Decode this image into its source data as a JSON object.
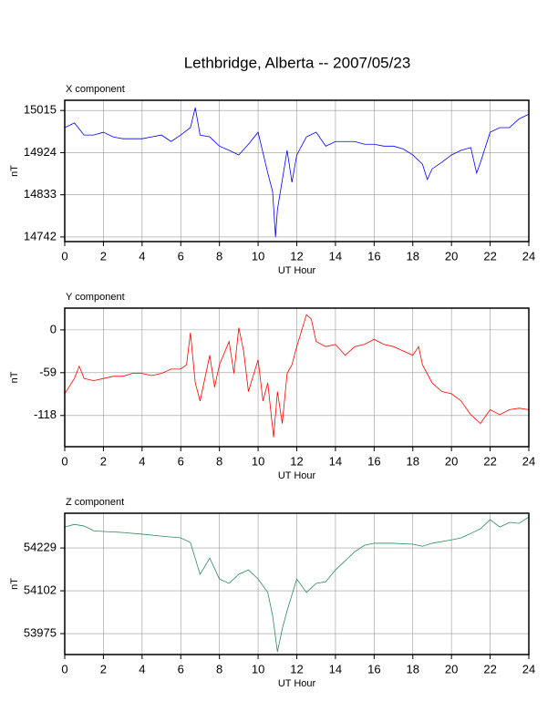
{
  "title": "Lethbridge, Alberta -- 2007/05/23",
  "chart_data": [
    {
      "type": "line",
      "title": "X component",
      "xlabel": "UT Hour",
      "ylabel": "nT",
      "xlim": [
        0,
        24
      ],
      "xticks": [
        0,
        2,
        4,
        6,
        8,
        10,
        12,
        14,
        16,
        18,
        20,
        22,
        24
      ],
      "ylim": [
        14732,
        15037
      ],
      "yticks": [
        14742,
        14833,
        14924,
        15015
      ],
      "grid": true,
      "x": [
        0,
        0.5,
        1,
        1.5,
        2,
        2.5,
        3,
        3.5,
        4,
        4.5,
        5,
        5.5,
        6,
        6.5,
        6.75,
        7,
        7.5,
        8,
        8.5,
        9,
        9.5,
        10,
        10.5,
        10.75,
        10.9,
        11,
        11.5,
        11.75,
        12,
        12.5,
        13,
        13.5,
        14,
        14.5,
        15,
        15.5,
        16,
        16.5,
        17,
        17.5,
        18,
        18.5,
        18.75,
        19,
        19.5,
        20,
        20.5,
        21,
        21.3,
        21.5,
        22,
        22.5,
        23,
        23.5,
        24
      ],
      "series": [
        {
          "name": "X component",
          "color": "#0000ff",
          "values": [
            14978,
            14988,
            14962,
            14962,
            14968,
            14958,
            14954,
            14954,
            14954,
            14958,
            14962,
            14948,
            14962,
            14978,
            15021,
            14962,
            14958,
            14938,
            14929,
            14919,
            14942,
            14968,
            14880,
            14840,
            14742,
            14801,
            14929,
            14860,
            14919,
            14958,
            14968,
            14938,
            14948,
            14948,
            14948,
            14942,
            14942,
            14938,
            14938,
            14932,
            14919,
            14899,
            14866,
            14889,
            14903,
            14919,
            14929,
            14935,
            14880,
            14903,
            14968,
            14978,
            14978,
            14997,
            15007
          ]
        }
      ]
    },
    {
      "type": "line",
      "title": "Y component",
      "xlabel": "UT Hour",
      "ylabel": "nT",
      "xlim": [
        0,
        24
      ],
      "xticks": [
        0,
        2,
        4,
        6,
        8,
        10,
        12,
        14,
        16,
        18,
        20,
        22,
        24
      ],
      "ylim": [
        -161,
        30
      ],
      "yticks": [
        -118,
        -59,
        0
      ],
      "grid": true,
      "x": [
        0,
        0.5,
        0.75,
        1,
        1.5,
        2,
        2.5,
        3,
        3.5,
        4,
        4.5,
        5,
        5.5,
        6,
        6.3,
        6.5,
        6.75,
        7,
        7.5,
        7.75,
        8,
        8.5,
        8.75,
        9,
        9.25,
        9.5,
        10,
        10.25,
        10.5,
        10.8,
        11,
        11.25,
        11.5,
        11.75,
        12,
        12.5,
        12.75,
        13,
        13.5,
        14,
        14.5,
        15,
        15.5,
        16,
        16.5,
        17,
        17.5,
        18,
        18.3,
        18.5,
        19,
        19.5,
        20,
        20.5,
        21,
        21.5,
        22,
        22.5,
        23,
        23.5,
        24
      ],
      "series": [
        {
          "name": "Y component",
          "color": "#ff0000",
          "values": [
            -88,
            -67,
            -50,
            -67,
            -70,
            -67,
            -64,
            -64,
            -60,
            -60,
            -63,
            -60,
            -54,
            -54,
            -48,
            -4,
            -73,
            -98,
            -35,
            -79,
            -48,
            -16,
            -60,
            3,
            -29,
            -85,
            -41,
            -98,
            -73,
            -148,
            -85,
            -129,
            -60,
            -48,
            -23,
            21,
            15,
            -16,
            -23,
            -20,
            -35,
            -23,
            -20,
            -13,
            -20,
            -23,
            -29,
            -35,
            -23,
            -48,
            -73,
            -85,
            -88,
            -98,
            -117,
            -129,
            -110,
            -117,
            -110,
            -108,
            -110
          ]
        }
      ]
    },
    {
      "type": "line",
      "title": "Z component",
      "xlabel": "UT Hour",
      "ylabel": "nT",
      "xlim": [
        0,
        24
      ],
      "xticks": [
        0,
        2,
        4,
        6,
        8,
        10,
        12,
        14,
        16,
        18,
        20,
        22,
        24
      ],
      "ylim": [
        53913,
        54332
      ],
      "yticks": [
        53975,
        54102,
        54229
      ],
      "grid": true,
      "x": [
        0,
        0.5,
        1,
        1.5,
        2,
        3,
        4,
        5,
        6,
        6.5,
        7,
        7.5,
        8,
        8.5,
        9,
        9.5,
        10,
        10.5,
        10.75,
        11,
        11.25,
        11.5,
        12,
        12.5,
        13,
        13.5,
        14,
        14.5,
        15,
        15.5,
        16,
        17,
        18,
        18.5,
        19,
        20,
        20.5,
        21,
        21.5,
        22,
        22.5,
        23,
        23.5,
        24
      ],
      "series": [
        {
          "name": "Z component",
          "color": "#2e8b57",
          "values": [
            54291,
            54299,
            54294,
            54280,
            54278,
            54275,
            54270,
            54264,
            54259,
            54245,
            54151,
            54199,
            54137,
            54124,
            54151,
            54164,
            54137,
            54097,
            54029,
            53921,
            53989,
            54043,
            54137,
            54097,
            54124,
            54129,
            54164,
            54191,
            54218,
            54237,
            54243,
            54243,
            54240,
            54234,
            54243,
            54253,
            54259,
            54272,
            54286,
            54313,
            54291,
            54305,
            54302,
            54321
          ]
        }
      ]
    }
  ]
}
